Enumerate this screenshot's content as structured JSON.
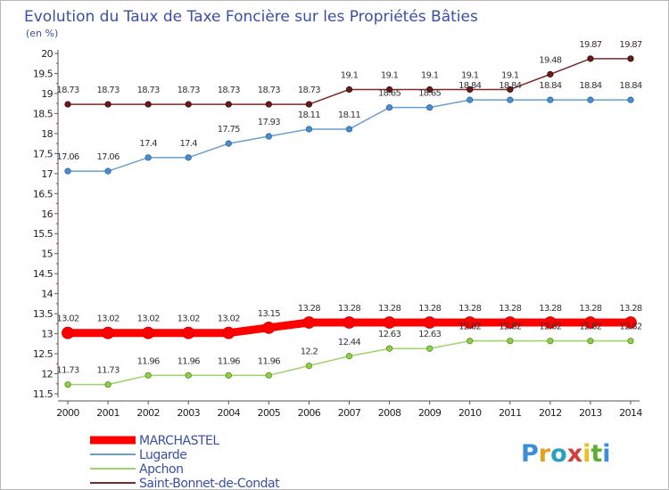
{
  "chart_data": {
    "type": "line",
    "title": "Evolution du Taux de Taxe Foncière sur les Propriétés Bâties",
    "ylabel": "(en %)",
    "xlabel": "",
    "ylim": [
      11.5,
      20
    ],
    "yticks": [
      11.5,
      12,
      12.5,
      13,
      13.5,
      14,
      14.5,
      15,
      15.5,
      16,
      16.5,
      17,
      17.5,
      18,
      18.5,
      19,
      19.5,
      20
    ],
    "grid": false,
    "legend_position": "bottom-left",
    "x": [
      "2000",
      "2001",
      "2002",
      "2003",
      "2004",
      "2005",
      "2006",
      "2007",
      "2008",
      "2009",
      "2010",
      "2011",
      "2012",
      "2013",
      "2014"
    ],
    "series": [
      {
        "name": "MARCHASTEL",
        "color": "#ff0000",
        "values": [
          13.02,
          13.02,
          13.02,
          13.02,
          13.02,
          13.15,
          13.28,
          13.28,
          13.28,
          13.28,
          13.28,
          13.28,
          13.28,
          13.28,
          13.28
        ]
      },
      {
        "name": "Lugarde",
        "color": "#6a9fd1",
        "values": [
          17.06,
          17.06,
          17.4,
          17.4,
          17.75,
          17.93,
          18.11,
          18.11,
          18.65,
          18.65,
          18.84,
          18.84,
          18.84,
          18.84,
          18.84
        ]
      },
      {
        "name": "Apchon",
        "color": "#9ed36a",
        "values": [
          11.73,
          11.73,
          11.96,
          11.96,
          11.96,
          11.96,
          12.2,
          12.44,
          12.63,
          12.63,
          12.82,
          12.82,
          12.82,
          12.82,
          12.82
        ]
      },
      {
        "name": "Saint-Bonnet-de-Condat",
        "color": "#7a2a2a",
        "values": [
          18.73,
          18.73,
          18.73,
          18.73,
          18.73,
          18.73,
          18.73,
          19.1,
          19.1,
          19.1,
          19.1,
          19.1,
          19.48,
          19.87,
          19.87
        ]
      }
    ]
  },
  "logo": {
    "text": "Proxiti"
  }
}
